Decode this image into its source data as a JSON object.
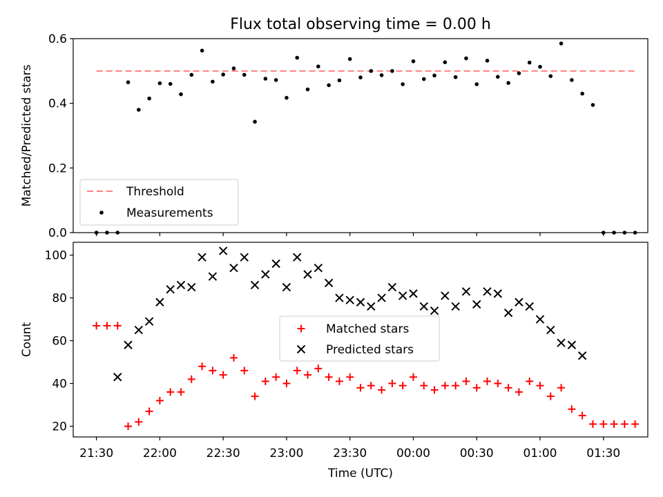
{
  "title": "Flux total observing time = 0.00 h",
  "colors": {
    "threshold": "#ff7f7f",
    "measurements": "#000000",
    "matched": "#ff0000",
    "predicted": "#000000"
  },
  "chart_data": [
    {
      "type": "scatter",
      "title": "Flux total observing time = 0.00 h",
      "ylabel": "Matched/Predicted stars",
      "xlabel": "",
      "xlim": [
        "21:19",
        "01:51"
      ],
      "ylim": [
        0,
        0.6
      ],
      "yticks": [
        0.0,
        0.2,
        0.4,
        0.6
      ],
      "ytick_labels": [
        "0.0",
        "0.2",
        "0.4",
        "0.6"
      ],
      "grid": false,
      "legend_position": "lower-left",
      "legend": [
        "Threshold",
        "Measurements"
      ],
      "threshold": {
        "name": "Threshold",
        "value": 0.5,
        "x": [
          "21:30",
          "01:45"
        ]
      },
      "series": [
        {
          "name": "Measurements",
          "x": [
            "21:30",
            "21:35",
            "21:40",
            "21:45",
            "21:50",
            "21:55",
            "22:00",
            "22:05",
            "22:10",
            "22:15",
            "22:20",
            "22:25",
            "22:30",
            "22:35",
            "22:40",
            "22:45",
            "22:50",
            "22:55",
            "23:00",
            "23:05",
            "23:10",
            "23:15",
            "23:20",
            "23:25",
            "23:30",
            "23:35",
            "23:40",
            "23:45",
            "23:50",
            "23:55",
            "00:00",
            "00:05",
            "00:10",
            "00:15",
            "00:20",
            "00:25",
            "00:30",
            "00:35",
            "00:40",
            "00:45",
            "00:50",
            "00:55",
            "01:00",
            "01:05",
            "01:10",
            "01:15",
            "01:20",
            "01:25",
            "01:30",
            "01:35",
            "01:40",
            "01:45"
          ],
          "y": [
            0,
            0,
            0,
            0.465,
            0.38,
            0.415,
            0.462,
            0.46,
            0.428,
            0.488,
            0.563,
            0.467,
            0.489,
            0.508,
            0.488,
            0.343,
            0.476,
            0.472,
            0.417,
            0.541,
            0.443,
            0.514,
            0.456,
            0.471,
            0.537,
            0.48,
            0.5,
            0.487,
            0.5,
            0.459,
            0.53,
            0.475,
            0.486,
            0.527,
            0.481,
            0.539,
            0.459,
            0.532,
            0.482,
            0.463,
            0.493,
            0.526,
            0.513,
            0.484,
            0.585,
            0.472,
            0.43,
            0.395,
            0,
            0,
            0,
            0
          ]
        }
      ]
    },
    {
      "type": "scatter",
      "title": "",
      "ylabel": "Count",
      "xlabel": "Time (UTC)",
      "xlim": [
        "21:19",
        "01:51"
      ],
      "ylim": [
        15,
        106
      ],
      "yticks": [
        20,
        40,
        60,
        80,
        100
      ],
      "ytick_labels": [
        "20",
        "40",
        "60",
        "80",
        "100"
      ],
      "xtick_labels": [
        "21:30",
        "22:00",
        "22:30",
        "23:00",
        "23:30",
        "00:00",
        "00:30",
        "01:00",
        "01:30"
      ],
      "grid": false,
      "legend_position": "center",
      "legend": [
        "Matched stars",
        "Predicted stars"
      ],
      "series": [
        {
          "name": "Matched stars",
          "x": [
            "21:30",
            "21:35",
            "21:40",
            "21:45",
            "21:50",
            "21:55",
            "22:00",
            "22:05",
            "22:10",
            "22:15",
            "22:20",
            "22:25",
            "22:30",
            "22:35",
            "22:40",
            "22:45",
            "22:50",
            "22:55",
            "23:00",
            "23:05",
            "23:10",
            "23:15",
            "23:20",
            "23:25",
            "23:30",
            "23:35",
            "23:40",
            "23:45",
            "23:50",
            "23:55",
            "00:00",
            "00:05",
            "00:10",
            "00:15",
            "00:20",
            "00:25",
            "00:30",
            "00:35",
            "00:40",
            "00:45",
            "00:50",
            "00:55",
            "01:00",
            "01:05",
            "01:10",
            "01:15",
            "01:20",
            "01:25",
            "01:30",
            "01:35",
            "01:40",
            "01:45"
          ],
          "y": [
            67,
            67,
            67,
            20,
            22,
            27,
            32,
            36,
            36,
            42,
            48,
            46,
            44,
            52,
            46,
            34,
            41,
            43,
            40,
            46,
            44,
            47,
            43,
            41,
            43,
            38,
            39,
            37,
            40,
            39,
            43,
            39,
            37,
            39,
            39,
            41,
            38,
            41,
            40,
            38,
            36,
            41,
            39,
            34,
            38,
            28,
            25,
            21,
            21,
            21,
            21,
            21
          ]
        },
        {
          "name": "Predicted stars",
          "x": [
            "21:40",
            "21:45",
            "21:50",
            "21:55",
            "22:00",
            "22:05",
            "22:10",
            "22:15",
            "22:20",
            "22:25",
            "22:30",
            "22:35",
            "22:40",
            "22:45",
            "22:50",
            "22:55",
            "23:00",
            "23:05",
            "23:10",
            "23:15",
            "23:20",
            "23:25",
            "23:30",
            "23:35",
            "23:40",
            "23:45",
            "23:50",
            "23:55",
            "00:00",
            "00:05",
            "00:10",
            "00:15",
            "00:20",
            "00:25",
            "00:30",
            "00:35",
            "00:40",
            "00:45",
            "00:50",
            "00:55",
            "01:00",
            "01:05",
            "01:10",
            "01:15",
            "01:20"
          ],
          "y": [
            43,
            58,
            65,
            69,
            78,
            84,
            86,
            85,
            99,
            90,
            102,
            94,
            99,
            86,
            91,
            96,
            85,
            99,
            91,
            94,
            87,
            80,
            79,
            78,
            76,
            80,
            85,
            81,
            82,
            76,
            74,
            81,
            76,
            83,
            77,
            83,
            82,
            73,
            78,
            76,
            70,
            65,
            59,
            58,
            53
          ]
        }
      ]
    }
  ]
}
